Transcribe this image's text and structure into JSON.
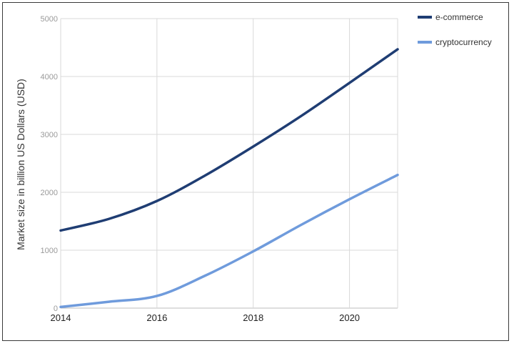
{
  "chart_data": {
    "type": "line",
    "title": "",
    "xlabel": "",
    "ylabel": "Market size in billion US Dollars (USD)",
    "xlim": [
      2014,
      2021
    ],
    "ylim": [
      0,
      5000
    ],
    "x_ticks": [
      "2014",
      "2016",
      "2018",
      "2020"
    ],
    "y_ticks": [
      "0",
      "1000",
      "2000",
      "3000",
      "4000",
      "5000"
    ],
    "grid": true,
    "legend_position": "right",
    "series": [
      {
        "name": "e-commerce",
        "color": "#1f3d73",
        "x": [
          2014,
          2015,
          2016,
          2017,
          2018,
          2019,
          2020,
          2021
        ],
        "values": [
          1340,
          1540,
          1850,
          2290,
          2790,
          3320,
          3890,
          4470
        ]
      },
      {
        "name": "cryptocurrency",
        "color": "#6f9bdc",
        "x": [
          2014,
          2015,
          2016,
          2017,
          2018,
          2019,
          2020,
          2021
        ],
        "values": [
          20,
          110,
          210,
          560,
          980,
          1440,
          1880,
          2300
        ]
      }
    ]
  }
}
